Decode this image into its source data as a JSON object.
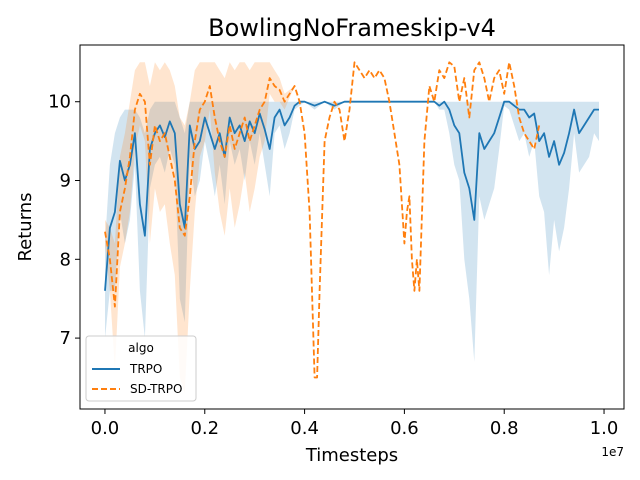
{
  "chart_data": {
    "type": "line",
    "title": "BowlingNoFrameskip-v4",
    "xlabel": "Timesteps",
    "ylabel": "Returns",
    "x_scale_label": "1e7",
    "xlim": [
      -0.05,
      1.04
    ],
    "ylim": [
      6.1,
      10.72
    ],
    "xticks": [
      0.0,
      0.2,
      0.4,
      0.6,
      0.8,
      1.0
    ],
    "xtick_labels": [
      "0.0",
      "0.2",
      "0.4",
      "0.6",
      "0.8",
      "1.0"
    ],
    "yticks": [
      7,
      8,
      9,
      10
    ],
    "ytick_labels": [
      "7",
      "8",
      "9",
      "10"
    ],
    "grid": false,
    "legend": {
      "title": "algo",
      "position": "lower-left",
      "entries": [
        "TRPO",
        "SD-TRPO"
      ]
    },
    "series": [
      {
        "name": "TRPO",
        "color": "#1f77b4",
        "style": "solid",
        "x": [
          0.0,
          0.01,
          0.02,
          0.03,
          0.04,
          0.05,
          0.06,
          0.07,
          0.08,
          0.09,
          0.1,
          0.11,
          0.12,
          0.13,
          0.14,
          0.15,
          0.16,
          0.17,
          0.18,
          0.19,
          0.2,
          0.21,
          0.22,
          0.23,
          0.24,
          0.25,
          0.26,
          0.27,
          0.28,
          0.29,
          0.3,
          0.31,
          0.32,
          0.33,
          0.34,
          0.35,
          0.36,
          0.37,
          0.38,
          0.39,
          0.4,
          0.42,
          0.44,
          0.46,
          0.48,
          0.5,
          0.55,
          0.6,
          0.62,
          0.64,
          0.66,
          0.67,
          0.68,
          0.69,
          0.7,
          0.71,
          0.72,
          0.73,
          0.74,
          0.75,
          0.76,
          0.77,
          0.78,
          0.79,
          0.8,
          0.81,
          0.82,
          0.83,
          0.84,
          0.85,
          0.86,
          0.87,
          0.88,
          0.89,
          0.9,
          0.91,
          0.92,
          0.93,
          0.94,
          0.95,
          0.96,
          0.97,
          0.98,
          0.99
        ],
        "values": [
          7.6,
          8.4,
          8.6,
          9.25,
          9.0,
          9.2,
          9.6,
          8.7,
          8.3,
          9.4,
          9.6,
          9.7,
          9.55,
          9.75,
          9.6,
          8.7,
          8.4,
          9.7,
          9.4,
          9.5,
          9.8,
          9.6,
          9.4,
          9.6,
          9.3,
          9.8,
          9.6,
          9.7,
          9.5,
          9.75,
          9.6,
          9.85,
          9.65,
          9.4,
          9.8,
          9.9,
          9.7,
          9.8,
          9.95,
          10.0,
          10.0,
          9.95,
          10.0,
          9.95,
          10.0,
          10.0,
          10.0,
          10.0,
          10.0,
          10.0,
          10.0,
          9.95,
          10.0,
          9.9,
          9.7,
          9.6,
          9.1,
          8.9,
          8.5,
          9.6,
          9.4,
          9.5,
          9.6,
          9.8,
          10.0,
          10.0,
          9.95,
          9.9,
          9.9,
          9.8,
          9.85,
          9.5,
          9.6,
          9.3,
          9.5,
          9.2,
          9.35,
          9.6,
          9.9,
          9.6,
          9.7,
          9.8,
          9.9,
          9.9
        ],
        "band_upper": [
          8.2,
          9.2,
          9.6,
          9.8,
          9.9,
          9.9,
          9.9,
          9.8,
          9.6,
          9.9,
          10.0,
          10.0,
          10.0,
          10.0,
          10.0,
          9.8,
          9.6,
          10.0,
          10.0,
          10.0,
          10.0,
          10.0,
          10.0,
          10.0,
          10.0,
          10.0,
          10.0,
          10.0,
          10.0,
          10.0,
          10.0,
          10.0,
          10.0,
          10.0,
          10.0,
          10.0,
          10.0,
          10.0,
          10.0,
          10.0,
          10.0,
          10.0,
          10.0,
          10.0,
          10.0,
          10.0,
          10.0,
          10.0,
          10.0,
          10.0,
          10.0,
          10.0,
          10.0,
          10.0,
          10.0,
          10.0,
          10.0,
          10.0,
          10.0,
          10.0,
          10.0,
          10.0,
          10.0,
          10.0,
          10.0,
          10.0,
          10.0,
          10.0,
          10.0,
          10.0,
          10.0,
          10.0,
          10.0,
          10.0,
          10.0,
          10.0,
          10.0,
          10.0,
          10.0,
          10.0,
          10.0,
          10.0,
          10.0,
          10.0
        ],
        "band_lower": [
          7.0,
          7.6,
          7.6,
          8.6,
          8.2,
          8.5,
          9.2,
          7.6,
          7.0,
          8.9,
          9.2,
          9.3,
          9.1,
          9.4,
          9.2,
          7.5,
          7.2,
          9.3,
          8.8,
          9.0,
          9.5,
          9.2,
          8.8,
          9.2,
          8.7,
          9.5,
          9.2,
          9.4,
          9.0,
          9.5,
          9.2,
          9.6,
          9.2,
          8.8,
          9.6,
          9.7,
          9.4,
          9.6,
          9.9,
          9.95,
          10.0,
          9.9,
          10.0,
          9.9,
          10.0,
          10.0,
          10.0,
          10.0,
          10.0,
          10.0,
          10.0,
          9.9,
          9.9,
          9.6,
          9.2,
          9.0,
          8.0,
          7.5,
          6.7,
          8.8,
          8.5,
          8.7,
          8.9,
          9.4,
          9.95,
          9.9,
          9.7,
          9.5,
          9.6,
          9.3,
          9.5,
          8.8,
          8.6,
          7.8,
          8.5,
          8.1,
          8.4,
          8.9,
          9.6,
          9.1,
          9.2,
          9.3,
          9.6,
          9.5
        ]
      },
      {
        "name": "SD-TRPO",
        "color": "#ff7f0e",
        "style": "dashed",
        "x": [
          0.0,
          0.01,
          0.02,
          0.03,
          0.04,
          0.05,
          0.06,
          0.07,
          0.08,
          0.09,
          0.1,
          0.11,
          0.12,
          0.13,
          0.14,
          0.15,
          0.16,
          0.17,
          0.18,
          0.19,
          0.2,
          0.21,
          0.22,
          0.23,
          0.24,
          0.25,
          0.26,
          0.27,
          0.28,
          0.29,
          0.3,
          0.31,
          0.32,
          0.33,
          0.34,
          0.35,
          0.36,
          0.37,
          0.38,
          0.39,
          0.4,
          0.41,
          0.42,
          0.425,
          0.43,
          0.44,
          0.45,
          0.46,
          0.47,
          0.48,
          0.49,
          0.5,
          0.51,
          0.52,
          0.53,
          0.54,
          0.55,
          0.56,
          0.57,
          0.58,
          0.59,
          0.6,
          0.605,
          0.61,
          0.615,
          0.62,
          0.625,
          0.63,
          0.64,
          0.65,
          0.66,
          0.67,
          0.68,
          0.69,
          0.7,
          0.71,
          0.72,
          0.73,
          0.74,
          0.75,
          0.76,
          0.77,
          0.78,
          0.79,
          0.8,
          0.81,
          0.82,
          0.83,
          0.84,
          0.85,
          0.86,
          0.87
        ],
        "values": [
          8.35,
          8.0,
          7.4,
          8.6,
          8.9,
          9.3,
          9.9,
          10.1,
          10.0,
          9.2,
          9.7,
          9.5,
          9.6,
          9.3,
          9.0,
          8.4,
          8.3,
          8.8,
          9.5,
          9.9,
          10.0,
          10.2,
          9.8,
          9.5,
          9.3,
          9.7,
          9.4,
          9.6,
          9.8,
          9.5,
          9.7,
          9.9,
          10.0,
          10.3,
          10.2,
          10.15,
          10.0,
          10.1,
          10.2,
          10.0,
          9.6,
          8.6,
          6.5,
          6.5,
          7.6,
          9.5,
          9.8,
          10.0,
          9.9,
          9.5,
          9.9,
          10.5,
          10.4,
          10.3,
          10.4,
          10.3,
          10.4,
          10.3,
          10.0,
          9.6,
          9.2,
          8.2,
          8.6,
          8.8,
          8.0,
          7.6,
          8.0,
          7.6,
          9.5,
          10.2,
          10.0,
          10.4,
          10.3,
          10.5,
          10.45,
          10.0,
          10.3,
          9.8,
          10.4,
          10.5,
          10.3,
          10.0,
          10.3,
          10.4,
          10.1,
          10.5,
          10.2,
          9.8,
          9.6,
          9.5,
          9.4,
          9.7
        ],
        "band_upper": [
          8.5,
          8.4,
          8.2,
          9.3,
          9.6,
          10.0,
          10.4,
          10.5,
          10.5,
          10.2,
          10.5,
          10.4,
          10.5,
          10.4,
          10.2,
          9.8,
          9.7,
          10.0,
          10.4,
          10.5,
          10.5,
          10.5,
          10.5,
          10.4,
          10.3,
          10.5,
          10.4,
          10.5,
          10.5,
          10.4,
          10.5,
          10.5,
          10.5,
          10.5,
          10.4,
          10.3,
          10.1,
          10.15,
          10.2,
          10.0,
          9.6,
          8.6,
          6.5,
          6.5,
          7.6,
          9.5,
          9.8,
          10.0,
          9.9,
          9.5,
          9.9,
          10.5,
          10.4,
          10.3,
          10.4,
          10.3,
          10.4,
          10.3,
          10.0,
          9.6,
          9.2,
          8.2,
          8.6,
          8.8,
          8.0,
          7.6,
          8.0,
          7.6,
          9.5,
          10.2,
          10.0,
          10.4,
          10.3,
          10.5,
          10.45,
          10.0,
          10.3,
          9.8,
          10.4,
          10.5,
          10.3,
          10.0,
          10.3,
          10.4,
          10.1,
          10.5,
          10.2,
          9.8,
          9.6,
          9.5,
          9.4,
          9.7
        ],
        "band_lower": [
          8.2,
          7.6,
          6.6,
          7.9,
          8.2,
          8.6,
          9.4,
          9.7,
          9.5,
          8.2,
          8.9,
          8.6,
          8.7,
          8.2,
          7.8,
          6.5,
          6.3,
          7.6,
          8.6,
          9.3,
          9.5,
          9.9,
          9.1,
          8.6,
          8.3,
          8.9,
          8.4,
          8.7,
          9.1,
          8.6,
          8.9,
          9.3,
          9.5,
          10.1,
          10.0,
          10.0,
          9.9,
          10.05,
          10.2,
          10.0,
          9.6,
          8.6,
          6.5,
          6.5,
          7.6,
          9.5,
          9.8,
          10.0,
          9.9,
          9.5,
          9.9,
          10.5,
          10.4,
          10.3,
          10.4,
          10.3,
          10.4,
          10.3,
          10.0,
          9.6,
          9.2,
          8.2,
          8.6,
          8.8,
          8.0,
          7.6,
          8.0,
          7.6,
          9.5,
          10.2,
          10.0,
          10.4,
          10.3,
          10.5,
          10.45,
          10.0,
          10.3,
          9.8,
          10.4,
          10.5,
          10.3,
          10.0,
          10.3,
          10.4,
          10.1,
          10.5,
          10.2,
          9.8,
          9.6,
          9.5,
          9.4,
          9.7
        ]
      }
    ]
  }
}
